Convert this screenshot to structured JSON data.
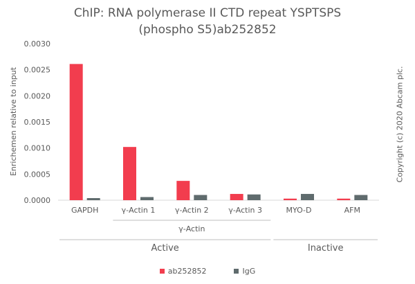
{
  "chart_data": {
    "type": "bar",
    "title_line1": "ChIP: RNA polymerase II CTD repeat YSPTSPS",
    "title_line2": "(phospho S5)ab252852",
    "ylabel": "Enrichemen relative to input",
    "ylim": [
      0,
      0.003
    ],
    "yticks": [
      "0.0000",
      "0.0005",
      "0.0010",
      "0.0015",
      "0.0020",
      "0.0025",
      "0.0030"
    ],
    "categories": [
      "GAPDH",
      "γ-Actin 1",
      "γ-Actin 2",
      "γ-Actin 3",
      "MYO-D",
      "AFM"
    ],
    "series": [
      {
        "name": "ab252852",
        "color": "#f23d4e",
        "values": [
          0.00261,
          0.00102,
          0.00037,
          0.00012,
          3e-05,
          3e-05
        ]
      },
      {
        "name": "IgG",
        "color": "#5f6b6d",
        "values": [
          4e-05,
          6e-05,
          0.0001,
          0.00011,
          0.00012,
          0.0001
        ]
      }
    ],
    "groups": [
      {
        "label": "γ-Actin",
        "from": 1,
        "to": 3,
        "level": 1
      },
      {
        "label": "Active",
        "from": 0,
        "to": 3,
        "level": 2
      },
      {
        "label": "Inactive",
        "from": 4,
        "to": 5,
        "level": 2
      }
    ],
    "grid": false,
    "legend_position": "bottom"
  },
  "copyright": "Copyright (c) 2020 Abcam plc."
}
